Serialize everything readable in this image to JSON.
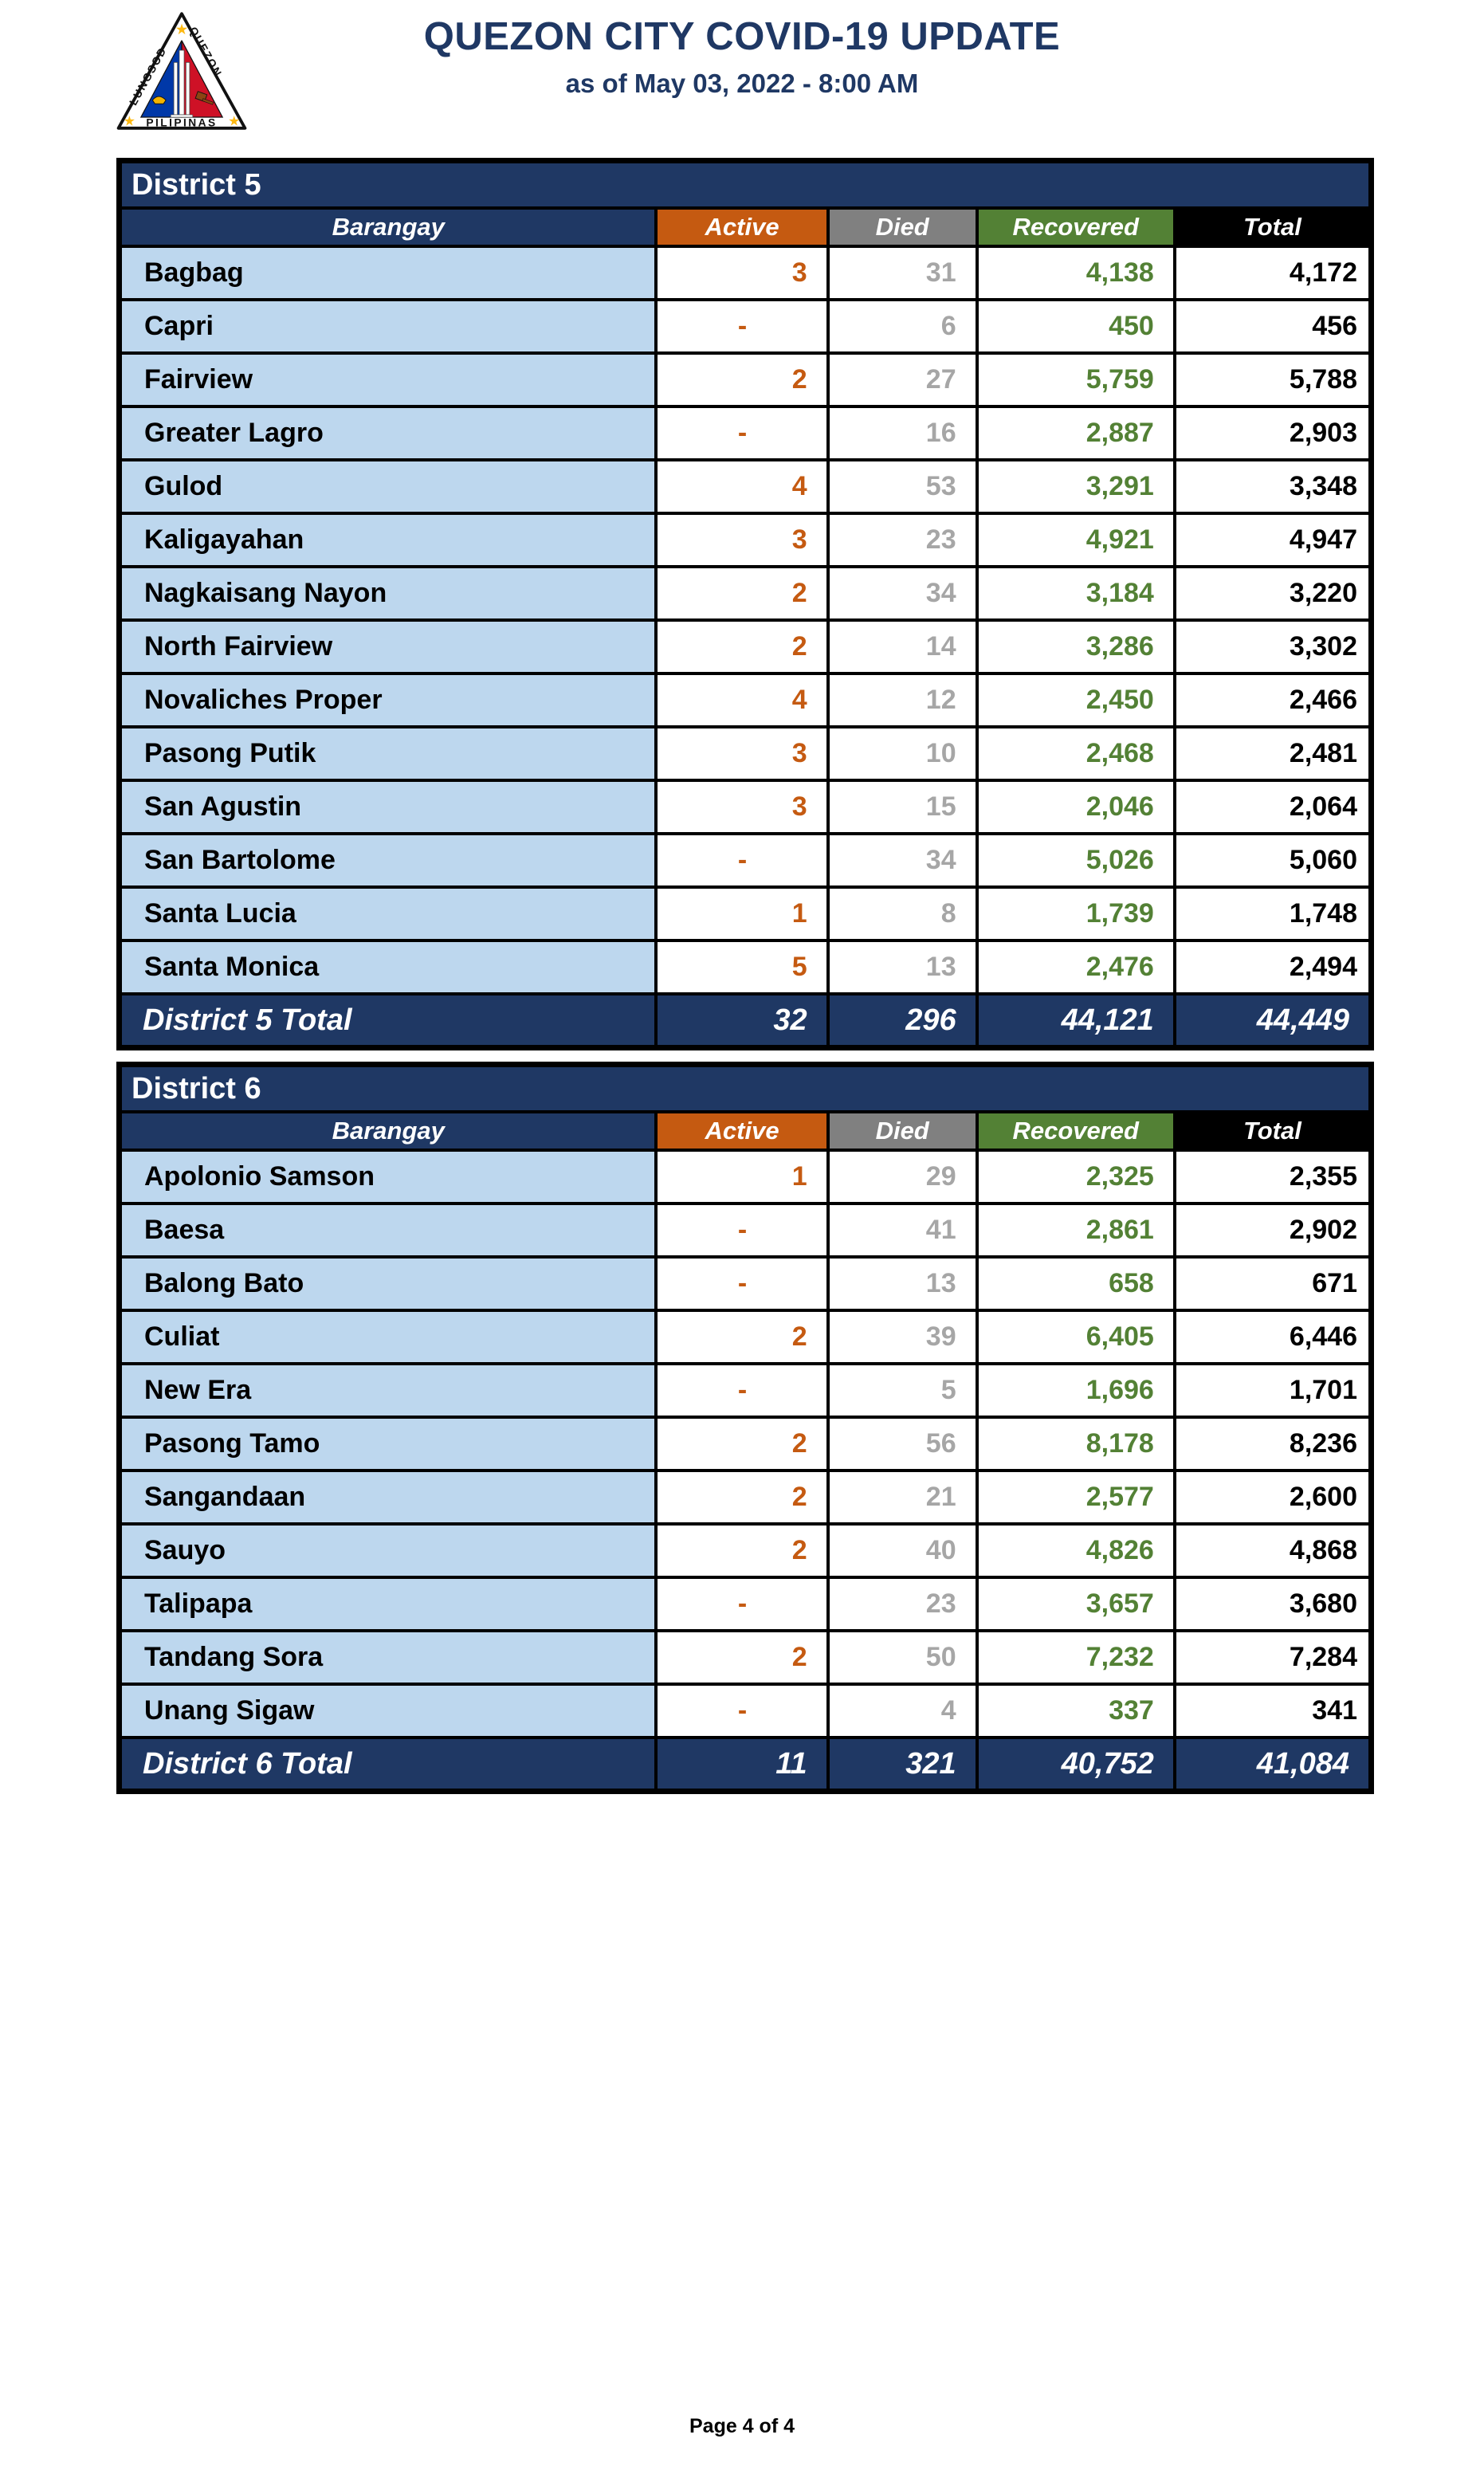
{
  "header": {
    "title": "QUEZON CITY COVID-19 UPDATE",
    "subtitle": "as of May 03, 2022 - 8:00 AM",
    "seal": {
      "left": "LUNGSOD",
      "right": "QUEZON",
      "bottom": "PILIPINAS"
    }
  },
  "columns": [
    "Barangay",
    "Active",
    "Died",
    "Recovered",
    "Total"
  ],
  "colors": {
    "navy": "#1F3864",
    "orange": "#C55A11",
    "gray_header": "#808080",
    "gray_value": "#A6A6A6",
    "green": "#538135",
    "light_blue": "#BDD7EE"
  },
  "tables": [
    {
      "title": "District 5",
      "rows": [
        {
          "barangay": "Bagbag",
          "active": "3",
          "died": "31",
          "recovered": "4,138",
          "total": "4,172"
        },
        {
          "barangay": "Capri",
          "active": "-",
          "died": "6",
          "recovered": "450",
          "total": "456"
        },
        {
          "barangay": "Fairview",
          "active": "2",
          "died": "27",
          "recovered": "5,759",
          "total": "5,788"
        },
        {
          "barangay": "Greater Lagro",
          "active": "-",
          "died": "16",
          "recovered": "2,887",
          "total": "2,903"
        },
        {
          "barangay": "Gulod",
          "active": "4",
          "died": "53",
          "recovered": "3,291",
          "total": "3,348"
        },
        {
          "barangay": "Kaligayahan",
          "active": "3",
          "died": "23",
          "recovered": "4,921",
          "total": "4,947"
        },
        {
          "barangay": "Nagkaisang Nayon",
          "active": "2",
          "died": "34",
          "recovered": "3,184",
          "total": "3,220"
        },
        {
          "barangay": "North Fairview",
          "active": "2",
          "died": "14",
          "recovered": "3,286",
          "total": "3,302"
        },
        {
          "barangay": "Novaliches Proper",
          "active": "4",
          "died": "12",
          "recovered": "2,450",
          "total": "2,466"
        },
        {
          "barangay": "Pasong Putik",
          "active": "3",
          "died": "10",
          "recovered": "2,468",
          "total": "2,481"
        },
        {
          "barangay": "San Agustin",
          "active": "3",
          "died": "15",
          "recovered": "2,046",
          "total": "2,064"
        },
        {
          "barangay": "San Bartolome",
          "active": "-",
          "died": "34",
          "recovered": "5,026",
          "total": "5,060"
        },
        {
          "barangay": "Santa Lucia",
          "active": "1",
          "died": "8",
          "recovered": "1,739",
          "total": "1,748"
        },
        {
          "barangay": "Santa Monica",
          "active": "5",
          "died": "13",
          "recovered": "2,476",
          "total": "2,494"
        }
      ],
      "total": {
        "label": "District 5 Total",
        "active": "32",
        "died": "296",
        "recovered": "44,121",
        "total": "44,449"
      }
    },
    {
      "title": "District 6",
      "rows": [
        {
          "barangay": "Apolonio Samson",
          "active": "1",
          "died": "29",
          "recovered": "2,325",
          "total": "2,355"
        },
        {
          "barangay": "Baesa",
          "active": "-",
          "died": "41",
          "recovered": "2,861",
          "total": "2,902"
        },
        {
          "barangay": "Balong Bato",
          "active": "-",
          "died": "13",
          "recovered": "658",
          "total": "671"
        },
        {
          "barangay": "Culiat",
          "active": "2",
          "died": "39",
          "recovered": "6,405",
          "total": "6,446"
        },
        {
          "barangay": "New Era",
          "active": "-",
          "died": "5",
          "recovered": "1,696",
          "total": "1,701"
        },
        {
          "barangay": "Pasong Tamo",
          "active": "2",
          "died": "56",
          "recovered": "8,178",
          "total": "8,236"
        },
        {
          "barangay": "Sangandaan",
          "active": "2",
          "died": "21",
          "recovered": "2,577",
          "total": "2,600"
        },
        {
          "barangay": "Sauyo",
          "active": "2",
          "died": "40",
          "recovered": "4,826",
          "total": "4,868"
        },
        {
          "barangay": "Talipapa",
          "active": "-",
          "died": "23",
          "recovered": "3,657",
          "total": "3,680"
        },
        {
          "barangay": "Tandang Sora",
          "active": "2",
          "died": "50",
          "recovered": "7,232",
          "total": "7,284"
        },
        {
          "barangay": "Unang Sigaw",
          "active": "-",
          "died": "4",
          "recovered": "337",
          "total": "341"
        }
      ],
      "total": {
        "label": "District 6 Total",
        "active": "11",
        "died": "321",
        "recovered": "40,752",
        "total": "41,084"
      }
    }
  ],
  "footer": {
    "page": "Page 4 of 4"
  }
}
